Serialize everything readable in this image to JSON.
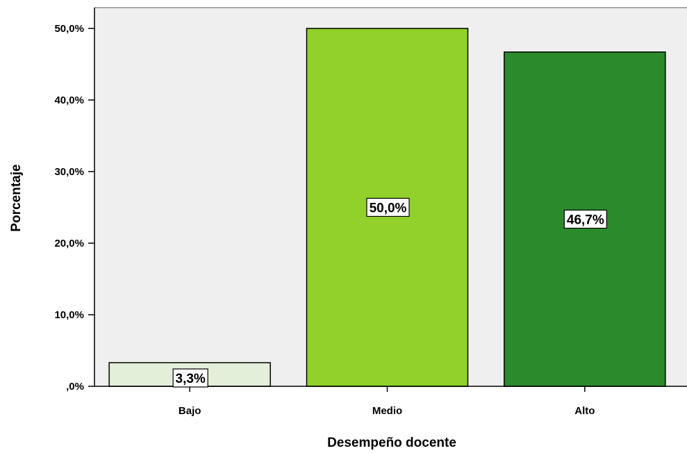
{
  "chart_data": {
    "type": "bar",
    "title": "",
    "xlabel": "Desempeño docente",
    "ylabel": "Porcentaje",
    "categories": [
      "Bajo",
      "Medio",
      "Alto"
    ],
    "values": [
      3.3,
      50.0,
      46.7
    ],
    "data_labels": [
      "3,3%",
      "50,0%",
      "46,7%"
    ],
    "bar_colors": [
      "#e3efd8",
      "#92d02b",
      "#2a8a2c"
    ],
    "ylim": [
      0,
      52.9
    ],
    "yticks": [
      0,
      10,
      20,
      30,
      40,
      50
    ],
    "ytick_labels": [
      ",0%",
      "10,0%",
      "20,0%",
      "30,0%",
      "40,0%",
      "50,0%"
    ],
    "grid": false,
    "plot_background": "#efefef"
  }
}
